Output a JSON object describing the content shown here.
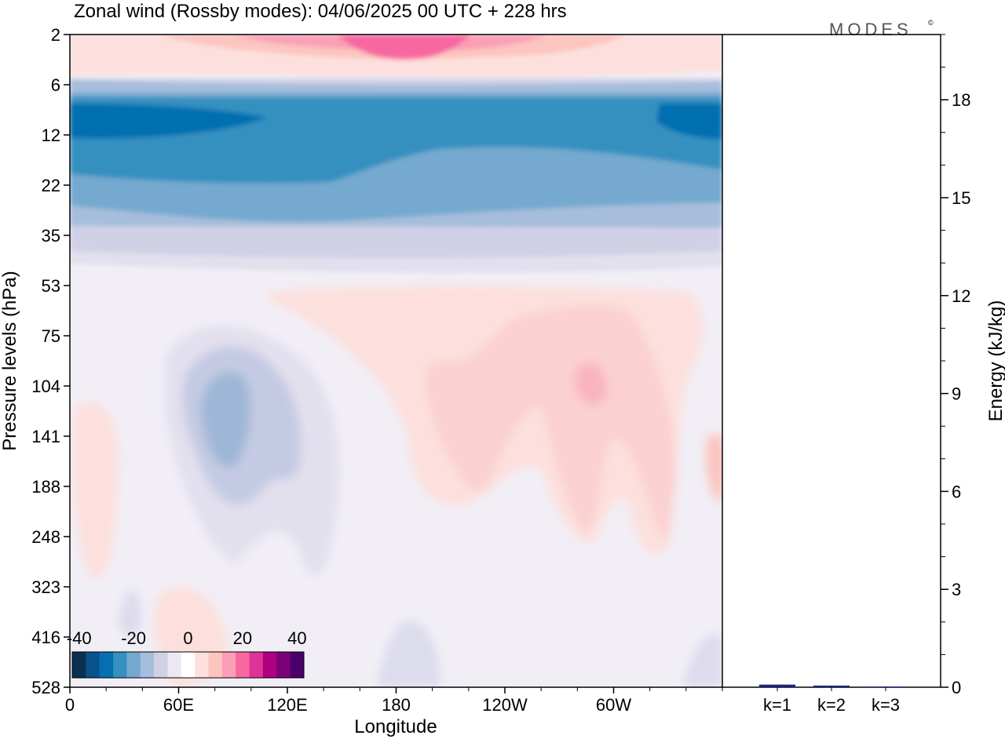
{
  "title": "Zonal wind (Rossby modes):  04/06/2025  00 UTC  + 228 hrs",
  "brand": "MODES",
  "brand_mark": "©",
  "colors": {
    "scale": [
      "#0b2f4f",
      "#08528a",
      "#0570b0",
      "#3690c0",
      "#74a9cf",
      "#a6bddb",
      "#d0d1e6",
      "#ece7f2",
      "#ffffff",
      "#fde0dd",
      "#fcc5c0",
      "#fa9fb5",
      "#f768a1",
      "#dd3497",
      "#ae017e",
      "#7a0177",
      "#49006a"
    ]
  },
  "chart_data": [
    {
      "type": "heatmap",
      "title": "Zonal wind (Rossby modes):  04/06/2025  00 UTC  + 228 hrs",
      "xlabel": "Longitude",
      "ylabel": "Pressure levels (hPa)",
      "x_ticks": [
        "0",
        "60E",
        "120E",
        "180",
        "120W",
        "60W"
      ],
      "x_tick_values": [
        0,
        60,
        120,
        180,
        240,
        300
      ],
      "xlim": [
        0,
        360
      ],
      "y_ticks": [
        "2",
        "6",
        "12",
        "22",
        "35",
        "53",
        "75",
        "104",
        "141",
        "188",
        "248",
        "323",
        "416",
        "528"
      ],
      "y_scale": "model levels (nonlinear)",
      "colorbar": {
        "ticks": [
          "-40",
          "-20",
          "0",
          "20",
          "40"
        ],
        "tick_values": [
          -40,
          -20,
          0,
          20,
          40
        ],
        "levels": [
          -40,
          -35,
          -30,
          -25,
          -20,
          -15,
          -10,
          -5,
          0,
          5,
          10,
          15,
          20,
          25,
          30,
          35,
          40
        ]
      },
      "grid": false,
      "series": [
        {
          "feature": "upper easterly jet core",
          "lon_range": [
            0,
            360
          ],
          "level_range": [
            "8",
            "22"
          ],
          "value": -30
        },
        {
          "feature": "top westerly maximum",
          "lon": 185,
          "level": "2",
          "value": 20
        },
        {
          "feature": "tropospheric easterly anomaly",
          "lon": 85,
          "level": "104",
          "value": -15
        },
        {
          "feature": "tropospheric westerly anomaly",
          "lon": 290,
          "level": "104",
          "value": 10
        }
      ]
    },
    {
      "type": "bar",
      "categories": [
        "k=1",
        "k=2",
        "k=3"
      ],
      "values": [
        0.08,
        0.05,
        0.02
      ],
      "ylabel": "Energy (kJ/kg)",
      "y_ticks": [
        "0",
        "3",
        "6",
        "9",
        "12",
        "15",
        "18"
      ],
      "y_tick_values": [
        0,
        3,
        6,
        9,
        12,
        15,
        18
      ],
      "ylim": [
        0,
        20
      ],
      "bar_colors": [
        "#1a237e",
        "#1a237e",
        "#1a237e"
      ]
    }
  ]
}
